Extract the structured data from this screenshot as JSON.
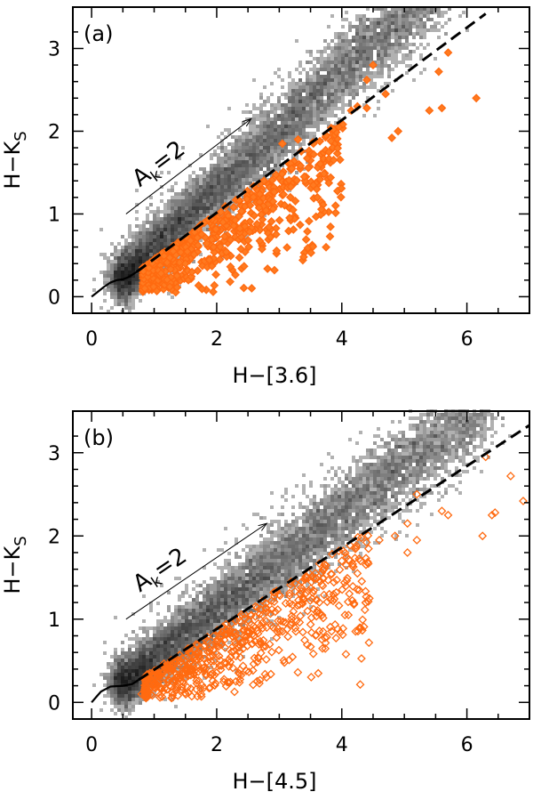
{
  "chart_data": [
    {
      "type": "scatter",
      "panel_label": "(a)",
      "xlabel": "H−[3.6]",
      "ylabel_main": "H−K",
      "ylabel_sub": "S",
      "xlim": [
        -0.3,
        7.0
      ],
      "ylim": [
        -0.2,
        3.5
      ],
      "xticks": [
        0,
        2,
        4,
        6
      ],
      "yticks": [
        0,
        1,
        2,
        3
      ],
      "density_band": {
        "slope": 0.71,
        "intercept": -0.13,
        "x_start": 0.45,
        "x_end": 5.6
      },
      "intrinsic_locus": [
        [
          0.0,
          0.0
        ],
        [
          0.1,
          0.06
        ],
        [
          0.2,
          0.12
        ],
        [
          0.3,
          0.17
        ],
        [
          0.4,
          0.2
        ],
        [
          0.5,
          0.21
        ],
        [
          0.6,
          0.24
        ],
        [
          0.72,
          0.3
        ]
      ],
      "dashed_line": {
        "x": [
          0.72,
          6.3
        ],
        "y": [
          0.3,
          3.42
        ]
      },
      "reddening_vector": {
        "from": [
          0.55,
          1.0
        ],
        "to": [
          2.55,
          2.15
        ],
        "label_main": "A",
        "label_sub": "k",
        "label_value": "=2"
      },
      "highlighted_points": [
        [
          5.7,
          2.95
        ],
        [
          5.55,
          2.72
        ],
        [
          4.5,
          2.8
        ],
        [
          4.4,
          2.62
        ],
        [
          4.7,
          2.45
        ],
        [
          5.4,
          2.25
        ],
        [
          5.6,
          2.28
        ],
        [
          6.15,
          2.4
        ],
        [
          4.4,
          2.28
        ],
        [
          4.25,
          2.3
        ],
        [
          4.9,
          2.0
        ],
        [
          4.15,
          2.25
        ],
        [
          3.95,
          2.05
        ],
        [
          3.75,
          1.95
        ],
        [
          3.3,
          1.9
        ],
        [
          3.05,
          1.85
        ],
        [
          3.55,
          1.72
        ],
        [
          4.8,
          1.92
        ],
        [
          3.6,
          1.3
        ],
        [
          3.9,
          1.1
        ],
        [
          3.2,
          1.55
        ],
        [
          2.9,
          1.15
        ],
        [
          2.6,
          0.98
        ],
        [
          2.45,
          0.85
        ],
        [
          2.1,
          0.9
        ],
        [
          1.95,
          0.6
        ],
        [
          1.5,
          0.4
        ],
        [
          1.25,
          0.12
        ],
        [
          0.85,
          0.1
        ],
        [
          3.4,
          1.45
        ]
      ]
    },
    {
      "type": "scatter",
      "panel_label": "(b)",
      "xlabel": "H−[4.5]",
      "ylabel_main": "H−K",
      "ylabel_sub": "S",
      "xlim": [
        -0.3,
        7.0
      ],
      "ylim": [
        -0.2,
        3.5
      ],
      "xticks": [
        0,
        2,
        4,
        6
      ],
      "yticks": [
        0,
        1,
        2,
        3
      ],
      "density_band": {
        "slope": 0.58,
        "intercept": -0.05,
        "x_start": 0.45,
        "x_end": 6.3
      },
      "intrinsic_locus": [
        [
          0.0,
          0.0
        ],
        [
          0.08,
          0.07
        ],
        [
          0.15,
          0.13
        ],
        [
          0.3,
          0.19
        ],
        [
          0.5,
          0.2
        ],
        [
          0.65,
          0.22
        ],
        [
          0.75,
          0.27
        ]
      ],
      "dashed_line": {
        "x": [
          0.75,
          7.0
        ],
        "y": [
          0.27,
          3.33
        ]
      },
      "reddening_vector": {
        "from": [
          0.55,
          1.0
        ],
        "to": [
          2.8,
          2.15
        ],
        "label_main": "A",
        "label_sub": "k",
        "label_value": "=2"
      },
      "highlighted_points": [
        [
          6.9,
          2.42
        ],
        [
          6.7,
          2.72
        ],
        [
          6.45,
          2.28
        ],
        [
          6.4,
          2.25
        ],
        [
          6.3,
          2.95
        ],
        [
          6.25,
          2.0
        ],
        [
          5.7,
          2.25
        ],
        [
          5.6,
          2.3
        ],
        [
          5.2,
          2.5
        ],
        [
          5.05,
          2.15
        ],
        [
          5.05,
          1.8
        ],
        [
          4.85,
          2.0
        ],
        [
          4.6,
          1.95
        ],
        [
          4.3,
          1.7
        ],
        [
          4.25,
          1.55
        ],
        [
          4.0,
          1.7
        ],
        [
          3.8,
          1.3
        ],
        [
          4.05,
          1.05
        ],
        [
          3.55,
          1.12
        ],
        [
          3.2,
          1.0
        ],
        [
          2.9,
          0.9
        ],
        [
          2.6,
          0.8
        ],
        [
          2.3,
          0.7
        ],
        [
          2.0,
          0.58
        ],
        [
          1.7,
          0.45
        ],
        [
          1.35,
          0.3
        ],
        [
          1.0,
          0.18
        ],
        [
          0.8,
          0.1
        ],
        [
          5.2,
          1.95
        ],
        [
          3.7,
          1.6
        ]
      ]
    }
  ]
}
